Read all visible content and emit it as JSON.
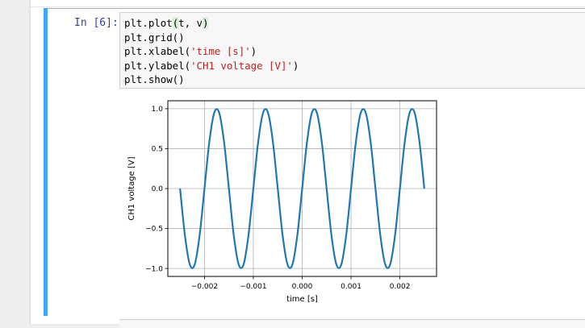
{
  "cell": {
    "prompt": "In [6]:",
    "code_lines": [
      {
        "pre": "plt.plot",
        "hl": "(",
        "mid": "t, v",
        "hl2": ")",
        "post": ""
      },
      {
        "text": "plt.grid()"
      },
      {
        "pre": "plt.xlabel(",
        "str": "'time [s]'",
        "post": ")"
      },
      {
        "pre": "plt.ylabel(",
        "str": "'CH1 voltage [V]'",
        "post": ")"
      },
      {
        "text": "plt.show()"
      }
    ]
  },
  "colors": {
    "accent": "#42a5f5",
    "prompt": "#303f9f",
    "string": "#ba2121",
    "line": "#1f77b4"
  },
  "chart_data": {
    "type": "line",
    "title": "",
    "xlabel": "time [s]",
    "ylabel": "CH1 voltage [V]",
    "xlim": [
      -0.00275,
      0.00275
    ],
    "ylim": [
      -1.1,
      1.1
    ],
    "xticks": [
      -0.002,
      -0.001,
      0.0,
      0.001,
      0.002
    ],
    "xtick_labels": [
      "−0.002",
      "−0.001",
      "0.000",
      "0.001",
      "0.002"
    ],
    "yticks": [
      -1.0,
      -0.5,
      0.0,
      0.5,
      1.0
    ],
    "ytick_labels": [
      "−1.0",
      "−0.5",
      "0.0",
      "0.5",
      "1.0"
    ],
    "grid": true,
    "series": [
      {
        "x": [
          -0.0025,
          -0.0024,
          -0.0023,
          -0.0022,
          -0.0021,
          -0.002,
          -0.0019,
          -0.0018,
          -0.0017,
          -0.0016,
          -0.0015,
          -0.0014,
          -0.0013,
          -0.0012,
          -0.0011,
          -0.001,
          -0.0009,
          -0.0008,
          -0.0007,
          -0.0006,
          -0.0005,
          -0.0004,
          -0.0003,
          -0.0002,
          -0.0001,
          0.0,
          0.0001,
          0.0002,
          0.0003,
          0.0004,
          0.0005,
          0.0006,
          0.0007,
          0.0008,
          0.0009,
          0.001,
          0.0011,
          0.0012,
          0.0013,
          0.0014,
          0.0015,
          0.0016,
          0.0017,
          0.0018,
          0.0019,
          0.002,
          0.0021,
          0.0022,
          0.0023,
          0.0024,
          0.0025
        ],
        "y": [
          0.0,
          -0.588,
          -0.951,
          -0.951,
          -0.588,
          0.0,
          0.588,
          0.951,
          0.951,
          0.588,
          0.0,
          -0.588,
          -0.951,
          -0.951,
          -0.588,
          0.0,
          0.588,
          0.951,
          0.951,
          0.588,
          0.0,
          -0.588,
          -0.951,
          -0.951,
          -0.588,
          0.0,
          0.588,
          0.951,
          0.951,
          0.588,
          0.0,
          -0.588,
          -0.951,
          -0.951,
          -0.588,
          0.0,
          0.588,
          0.951,
          0.951,
          0.588,
          0.0,
          -0.588,
          -0.951,
          -0.951,
          -0.588,
          0.0,
          0.588,
          0.951,
          0.951,
          0.588,
          0.0
        ]
      }
    ]
  }
}
